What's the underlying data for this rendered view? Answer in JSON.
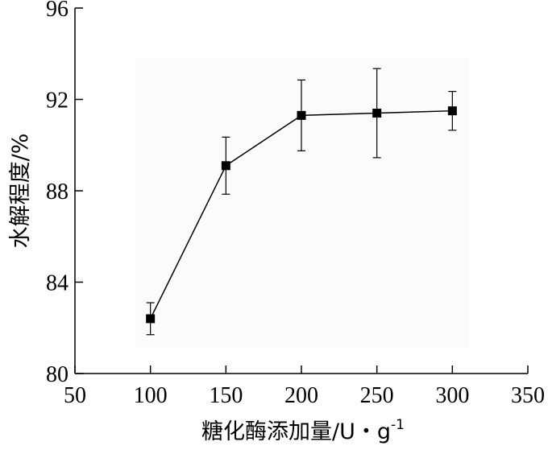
{
  "chart_data": {
    "type": "line",
    "title": "",
    "xlabel": "糖化酶添加量/U・g",
    "xlabel_sup": "-1",
    "ylabel": "水解程度/%",
    "x": [
      100,
      150,
      200,
      250,
      300
    ],
    "series": [
      {
        "values": [
          82.4,
          89.1,
          91.3,
          91.4,
          91.5
        ],
        "errors": [
          0.7,
          1.25,
          1.55,
          1.95,
          0.85
        ]
      }
    ],
    "xlim": [
      50,
      350
    ],
    "ylim": [
      80,
      96
    ],
    "xticks": [
      50,
      100,
      150,
      200,
      250,
      300,
      350
    ],
    "yticks": [
      80,
      84,
      88,
      92,
      96
    ],
    "grid": false,
    "colors": {
      "line": "#000000",
      "marker": "#000000",
      "plot_bg": "#fbfbfb"
    }
  }
}
